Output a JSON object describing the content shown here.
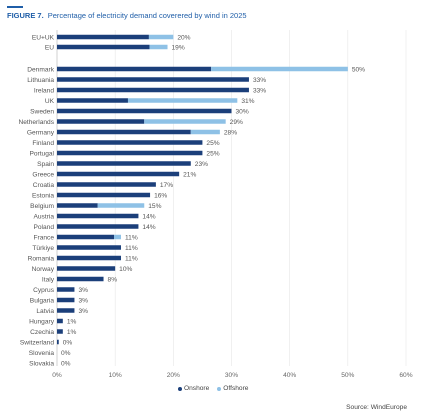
{
  "figure": {
    "label": "FIGURE 7.",
    "title": "Percentage of electricity demand coverered by wind in 2025"
  },
  "source": "Source: WindEurope",
  "colors": {
    "onshore": "#1b3f7a",
    "offshore": "#8ec1e6",
    "label": "#555555",
    "axis": "#666666",
    "grid": "#e6e6e6",
    "accent": "#1f5ea8"
  },
  "chart_data": {
    "type": "bar",
    "orientation": "horizontal",
    "stacked": true,
    "categories": [
      "EU+UK",
      "EU",
      "Denmark",
      "Lithuania",
      "Ireland",
      "UK",
      "Sweden",
      "Netherlands",
      "Germany",
      "Finland",
      "Portugal",
      "Spain",
      "Greece",
      "Croatia",
      "Estonia",
      "Belgium",
      "Austria",
      "Poland",
      "France",
      "Türkiye",
      "Romania",
      "Norway",
      "Italy",
      "Cyprus",
      "Bulgaria",
      "Latvia",
      "Hungary",
      "Czechia",
      "Switzerland",
      "Slovenia",
      "Slovakia"
    ],
    "group_break_after": 1,
    "series": [
      {
        "name": "Onshore",
        "values": [
          15.8,
          15.9,
          26.5,
          33,
          33,
          12.2,
          30,
          15,
          23,
          25,
          25,
          23,
          21,
          17,
          16,
          7,
          14,
          14,
          9.8,
          11,
          11,
          10,
          8,
          3,
          3,
          3,
          1,
          1,
          0.3,
          0,
          0
        ]
      },
      {
        "name": "Offshore",
        "values": [
          4.2,
          3.1,
          23.5,
          0,
          0,
          18.8,
          0,
          14,
          5,
          0,
          0,
          0,
          0,
          0,
          0,
          8,
          0,
          0,
          1.2,
          0,
          0,
          0,
          0,
          0,
          0,
          0,
          0,
          0,
          0,
          0,
          0
        ]
      }
    ],
    "total_labels": [
      "20%",
      "19%",
      "50%",
      "33%",
      "33%",
      "31%",
      "30%",
      "29%",
      "28%",
      "25%",
      "25%",
      "23%",
      "21%",
      "17%",
      "16%",
      "15%",
      "14%",
      "14%",
      "11%",
      "11%",
      "11%",
      "10%",
      "8%",
      "3%",
      "3%",
      "3%",
      "1%",
      "1%",
      "0%",
      "0%",
      "0%"
    ],
    "xlim": [
      0,
      60
    ],
    "xticks": [
      0,
      10,
      20,
      30,
      40,
      50,
      60
    ],
    "xtick_labels": [
      "0%",
      "10%",
      "20%",
      "30%",
      "40%",
      "50%",
      "60%"
    ],
    "grid": "vertical",
    "legend_position": "bottom-center"
  }
}
